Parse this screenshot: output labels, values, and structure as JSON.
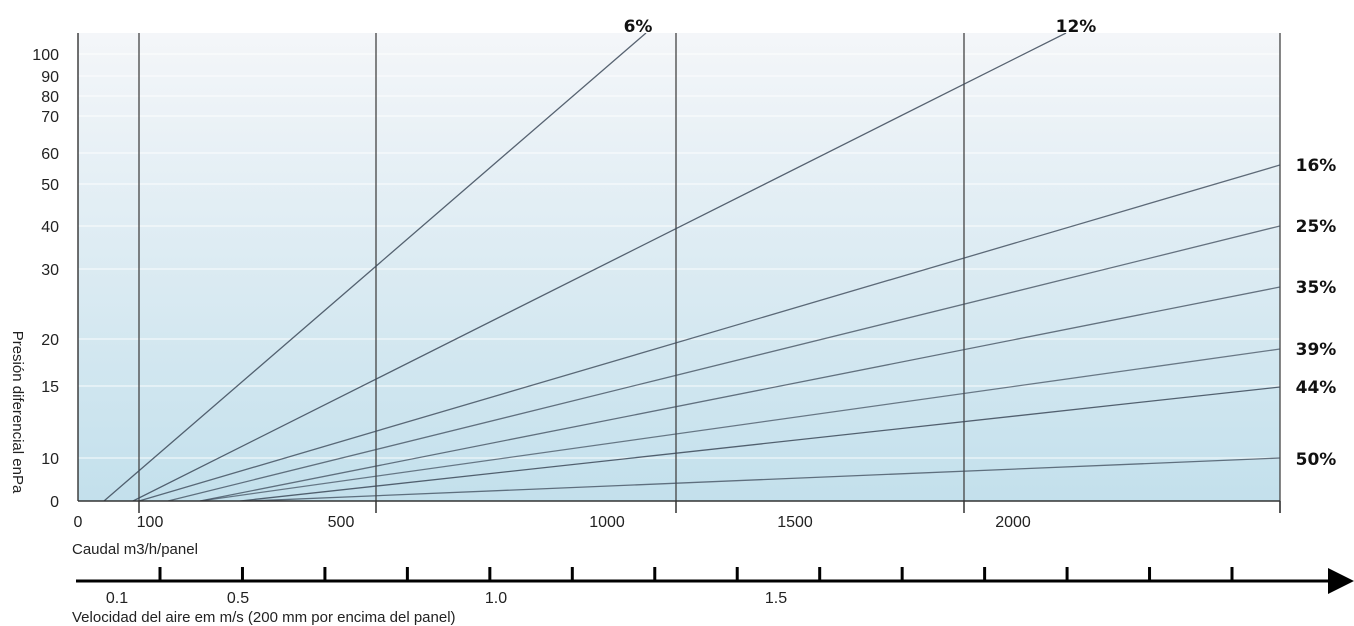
{
  "chart_data": {
    "type": "line",
    "title": "",
    "ylabel": "Presión diferencial enPa",
    "xlabel": "Caudal m3/h/panel",
    "y_ticks": [
      {
        "value": 0,
        "label": "0"
      },
      {
        "value": 10,
        "label": "10"
      },
      {
        "value": 15,
        "label": "15"
      },
      {
        "value": 20,
        "label": "20"
      },
      {
        "value": 30,
        "label": "30"
      },
      {
        "value": 40,
        "label": "40"
      },
      {
        "value": 50,
        "label": "50"
      },
      {
        "value": 60,
        "label": "60"
      },
      {
        "value": 70,
        "label": "70"
      },
      {
        "value": 80,
        "label": "80"
      },
      {
        "value": 90,
        "label": "90"
      },
      {
        "value": 100,
        "label": "100"
      }
    ],
    "x_ticks": [
      {
        "value": 0,
        "label": "0"
      },
      {
        "value": 100,
        "label": "100"
      },
      {
        "value": 500,
        "label": "500"
      },
      {
        "value": 1000,
        "label": "1000"
      },
      {
        "value": 1500,
        "label": "1500"
      },
      {
        "value": 2000,
        "label": "2000"
      }
    ],
    "x_gridlines": [
      100,
      500,
      1000,
      1500,
      2000
    ],
    "x_major_ticks": [
      100,
      500,
      1000,
      1500,
      2000,
      2500
    ],
    "xlim": [
      0,
      2500
    ],
    "grid": true,
    "series": [
      {
        "name": "6%",
        "x": [
          50,
          1050
        ],
        "y": [
          0,
          115
        ]
      },
      {
        "name": "12%",
        "x": [
          100,
          1950
        ],
        "y": [
          0,
          115
        ]
      },
      {
        "name": "16%",
        "x": [
          100,
          2500
        ],
        "y": [
          0,
          55
        ]
      },
      {
        "name": "25%",
        "x": [
          150,
          2500
        ],
        "y": [
          0,
          40
        ]
      },
      {
        "name": "35%",
        "x": [
          200,
          2500
        ],
        "y": [
          0,
          27
        ]
      },
      {
        "name": "39%",
        "x": [
          200,
          2500
        ],
        "y": [
          0,
          18
        ]
      },
      {
        "name": "44%",
        "x": [
          200,
          2500
        ],
        "y": [
          0,
          14
        ]
      },
      {
        "name": "50%",
        "x": [
          250,
          2500
        ],
        "y": [
          0,
          10
        ]
      }
    ],
    "velocity_axis": {
      "label": "Velocidad del aire em m/s (200 mm por encima del panel)",
      "tick_count": 14,
      "labels": [
        {
          "value": 0.1,
          "label": "0.1"
        },
        {
          "value": 0.5,
          "label": "0.5"
        },
        {
          "value": 1.0,
          "label": "1.0"
        },
        {
          "value": 1.5,
          "label": "1.5"
        }
      ]
    }
  },
  "colors": {
    "gradient_top": "#f4f6f9",
    "gradient_bottom": "#c3e0ec",
    "gridline": "#444444",
    "series_line": "#3d4a5a"
  }
}
